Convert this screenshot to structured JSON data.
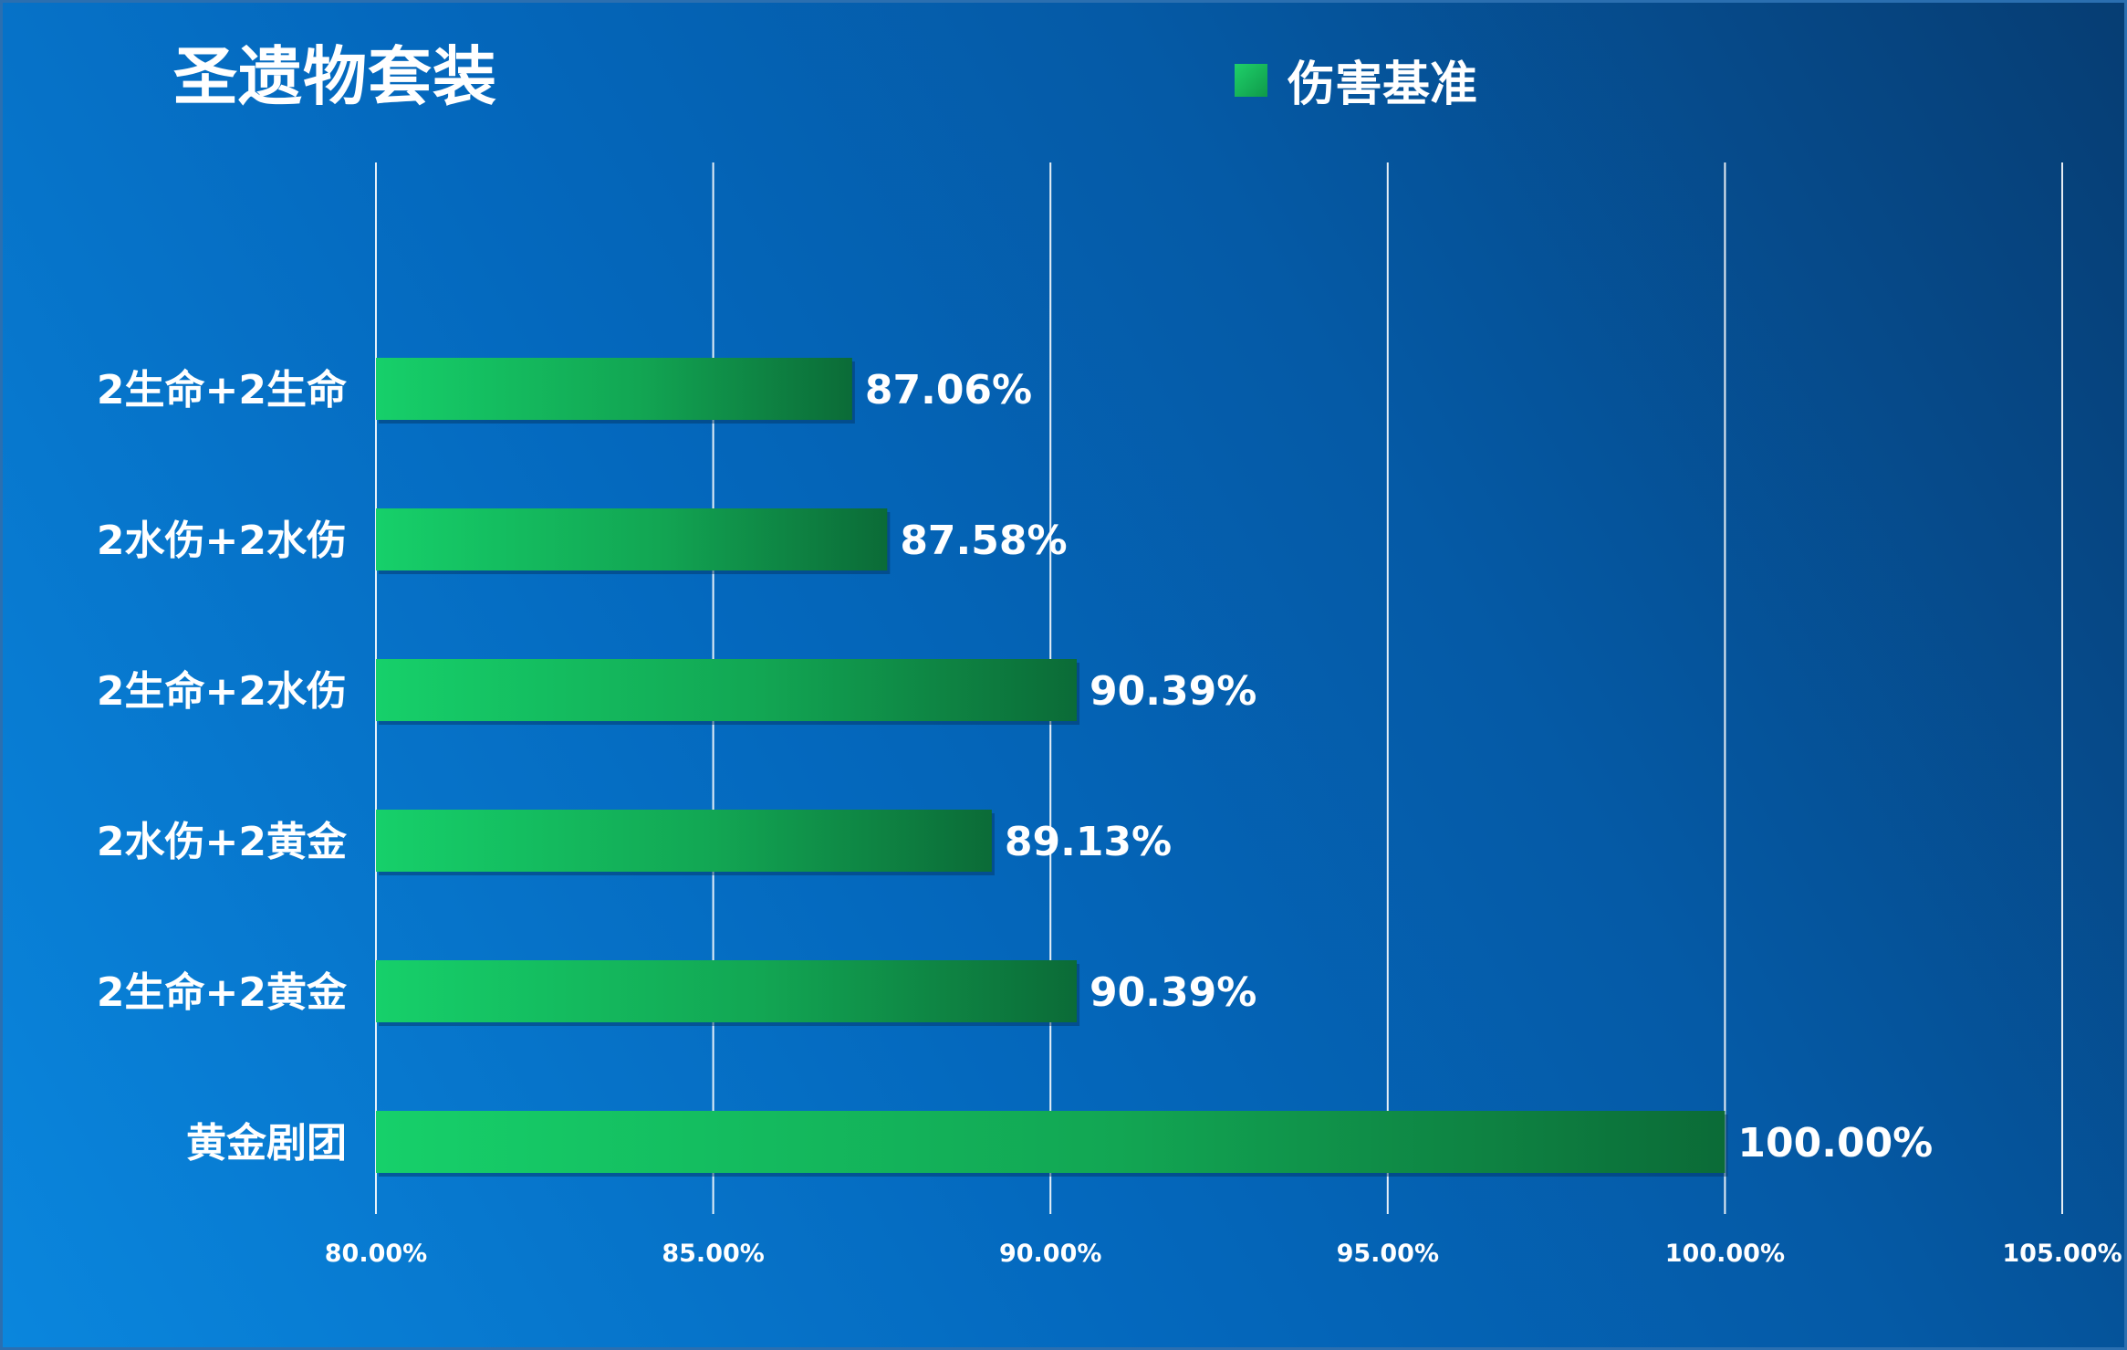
{
  "chart_data": {
    "type": "bar",
    "orientation": "horizontal",
    "title": "圣遗物套装",
    "categories": [
      "2生命+2生命",
      "2水伤+2水伤",
      "2生命+2水伤",
      "2水伤+2黄金",
      "2生命+2黄金",
      "黄金剧团"
    ],
    "series": [
      {
        "name": "伤害基准",
        "values": [
          87.06,
          87.58,
          90.39,
          89.13,
          90.39,
          100.0
        ],
        "value_labels": [
          "87.06%",
          "87.58%",
          "90.39%",
          "89.13%",
          "90.39%",
          "100.00%"
        ]
      }
    ],
    "xlim": [
      80,
      105
    ],
    "x_ticks": [
      80,
      85,
      90,
      95,
      100,
      105
    ],
    "x_tick_labels": [
      "80.00%",
      "85.00%",
      "90.00%",
      "95.00%",
      "100.00%",
      "105.00%"
    ],
    "grid": true,
    "legend_position": "top-right",
    "xlabel": "",
    "ylabel": ""
  },
  "colors": {
    "bar_light": "#16d06a",
    "bar_dark": "#0b6b37"
  }
}
